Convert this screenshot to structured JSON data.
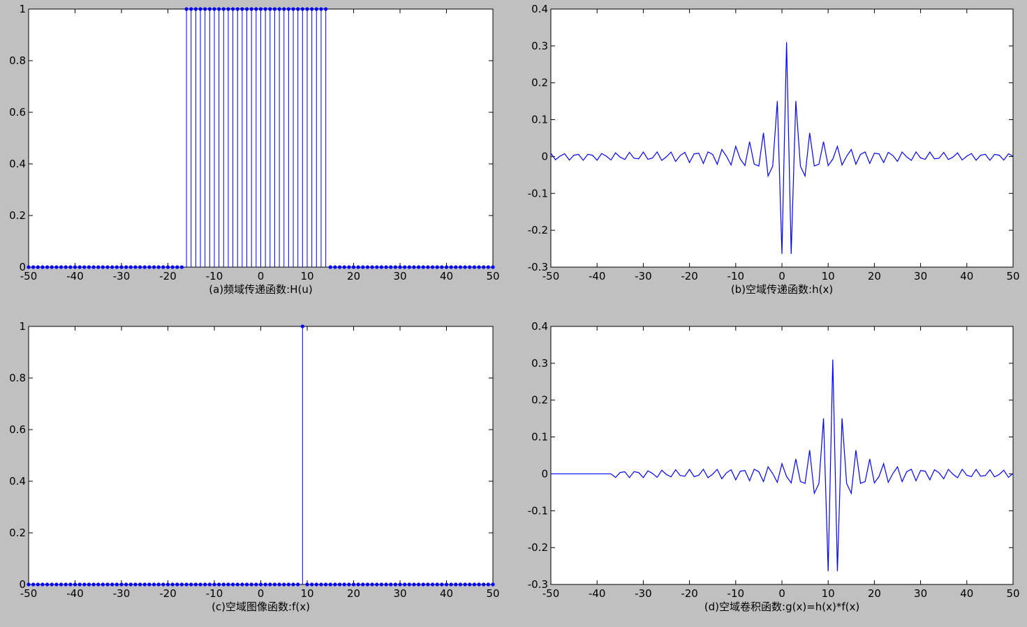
{
  "window": {
    "background": "#c0c0c0"
  },
  "chart_data": [
    {
      "id": "a",
      "type": "stem",
      "xlabel": "(a)频域传递函数:H(u)",
      "xlim": [
        -50,
        50
      ],
      "ylim": [
        0,
        1
      ],
      "xticks": [
        -50,
        -40,
        -30,
        -20,
        -10,
        0,
        10,
        20,
        30,
        40,
        50
      ],
      "yticks": [
        0,
        0.2,
        0.4,
        0.6,
        0.8,
        1
      ],
      "ytick_labels": [
        "0",
        "0.2",
        "0.4",
        "0.6",
        "0.8",
        "1"
      ],
      "series": [
        {
          "x_range": [
            -50,
            50
          ],
          "step": 1,
          "pass_band": [
            -16,
            14
          ],
          "in_band_value": 1,
          "out_band_value": 0,
          "color": "#0000ff"
        }
      ]
    },
    {
      "id": "b",
      "type": "line",
      "xlabel": "(b)空域传递函数:h(x)",
      "xlim": [
        -50,
        50
      ],
      "ylim": [
        -0.3,
        0.4
      ],
      "xticks": [
        -50,
        -40,
        -30,
        -20,
        -10,
        0,
        10,
        20,
        30,
        40,
        50
      ],
      "yticks": [
        -0.3,
        -0.2,
        -0.1,
        0,
        0.1,
        0.2,
        0.3,
        0.4
      ],
      "ytick_labels": [
        "-0.3",
        "-0.2",
        "-0.1",
        "0",
        "0.1",
        "0.2",
        "0.3",
        "0.4"
      ],
      "series": [
        {
          "x": [
            -50,
            50
          ],
          "shape": "sinc_modulated",
          "center": 1,
          "peak": 0.31,
          "color": "#0000ff"
        }
      ]
    },
    {
      "id": "c",
      "type": "stem",
      "xlabel": "(c)空域图像函数:f(x)",
      "xlim": [
        -50,
        50
      ],
      "ylim": [
        0,
        1
      ],
      "xticks": [
        -50,
        -40,
        -30,
        -20,
        -10,
        0,
        10,
        20,
        30,
        40,
        50
      ],
      "yticks": [
        0,
        0.2,
        0.4,
        0.6,
        0.8,
        1
      ],
      "ytick_labels": [
        "0",
        "0.2",
        "0.4",
        "0.6",
        "0.8",
        "1"
      ],
      "series": [
        {
          "x_range": [
            -50,
            50
          ],
          "step": 1,
          "impulse_at": 9,
          "impulse_value": 1,
          "color": "#0000ff"
        }
      ]
    },
    {
      "id": "d",
      "type": "line",
      "xlabel": "(d)空域卷积函数:g(x)=h(x)*f(x)",
      "xlim": [
        -50,
        50
      ],
      "ylim": [
        -0.3,
        0.4
      ],
      "xticks": [
        -50,
        -40,
        -30,
        -20,
        -10,
        0,
        10,
        20,
        30,
        40,
        50
      ],
      "yticks": [
        -0.3,
        -0.2,
        -0.1,
        0,
        0.1,
        0.2,
        0.3,
        0.4
      ],
      "ytick_labels": [
        "-0.3",
        "-0.2",
        "-0.1",
        "0",
        "0.1",
        "0.2",
        "0.3",
        "0.4"
      ],
      "series": [
        {
          "x": [
            -50,
            50
          ],
          "shape": "sinc_modulated",
          "center": 11,
          "peak": 0.31,
          "zero_before": -36,
          "color": "#0000ff"
        }
      ]
    }
  ]
}
